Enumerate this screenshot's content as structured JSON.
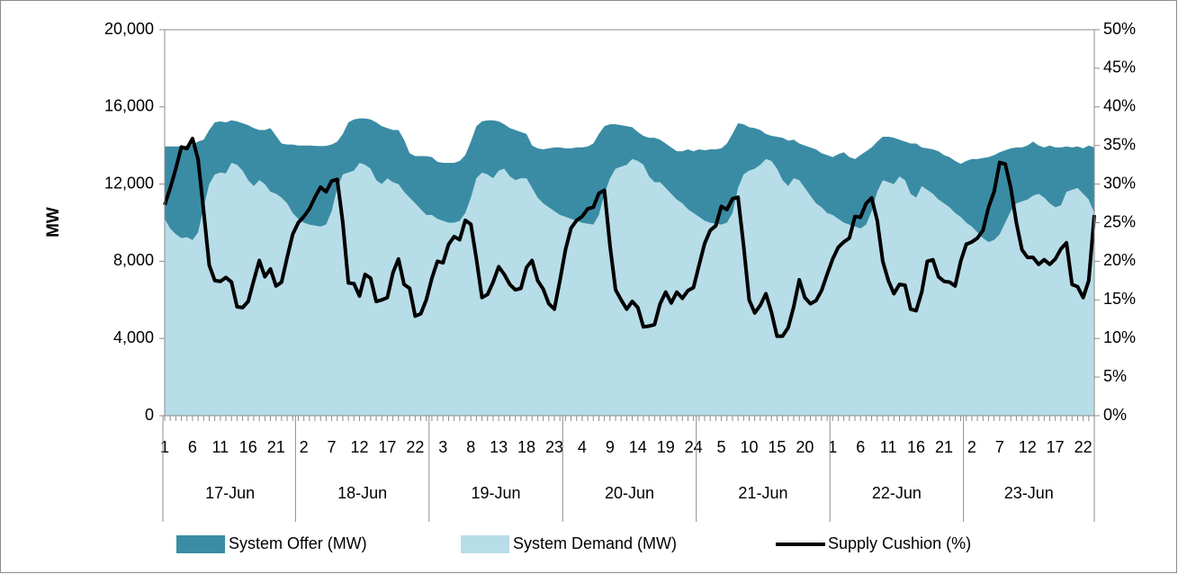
{
  "chart_data": {
    "type": "area",
    "y_label": "MW",
    "categories": [
      "1",
      null,
      null,
      null,
      null,
      "6",
      null,
      null,
      null,
      null,
      "11",
      null,
      null,
      null,
      null,
      "16",
      null,
      null,
      null,
      null,
      "21",
      null,
      null,
      null,
      null,
      "2",
      null,
      null,
      null,
      null,
      "7",
      null,
      null,
      null,
      null,
      "12",
      null,
      null,
      null,
      null,
      "17",
      null,
      null,
      null,
      null,
      "22",
      null,
      null,
      null,
      null,
      "3",
      null,
      null,
      null,
      null,
      "8",
      null,
      null,
      null,
      null,
      "13",
      null,
      null,
      null,
      null,
      "18",
      null,
      null,
      null,
      null,
      "23",
      null,
      null,
      null,
      null,
      "4",
      null,
      null,
      null,
      null,
      "9",
      null,
      null,
      null,
      null,
      "14",
      null,
      null,
      null,
      null,
      "19",
      null,
      null,
      null,
      null,
      "24",
      null,
      null,
      null,
      null,
      "5",
      null,
      null,
      null,
      null,
      "10",
      null,
      null,
      null,
      null,
      "15",
      null,
      null,
      null,
      null,
      "20",
      null,
      null,
      null,
      null,
      "1",
      null,
      null,
      null,
      null,
      "6",
      null,
      null,
      null,
      null,
      "11",
      null,
      null,
      null,
      null,
      "16",
      null,
      null,
      null,
      null,
      "21",
      null,
      null,
      null,
      null,
      "2",
      null,
      null,
      null,
      null,
      "7",
      null,
      null,
      null,
      null,
      "12",
      null,
      null,
      null,
      null,
      "17",
      null,
      null,
      null,
      null,
      "22",
      null,
      null
    ],
    "groups": [
      "17-Jun",
      "18-Jun",
      "19-Jun",
      "20-Jun",
      "21-Jun",
      "22-Jun",
      "23-Jun"
    ],
    "series": [
      {
        "name": "System Offer (MW)",
        "type": "area",
        "color": "#3a8ca4",
        "values": [
          13950,
          13950,
          13950,
          13950,
          14000,
          14050,
          14200,
          14300,
          14800,
          15200,
          15250,
          15200,
          15300,
          15250,
          15150,
          15050,
          14900,
          14800,
          14800,
          14900,
          14500,
          14100,
          14050,
          14050,
          14000,
          14000,
          14000,
          13980,
          13970,
          13980,
          14050,
          14200,
          14600,
          15200,
          15350,
          15400,
          15400,
          15350,
          15200,
          15000,
          14900,
          14800,
          14800,
          14300,
          13600,
          13450,
          13450,
          13450,
          13400,
          13150,
          13100,
          13100,
          13100,
          13200,
          13500,
          14200,
          15000,
          15250,
          15300,
          15300,
          15250,
          15100,
          14900,
          14800,
          14700,
          14600,
          14000,
          13850,
          13800,
          13850,
          13900,
          13900,
          13850,
          13850,
          13900,
          13900,
          13950,
          14100,
          14600,
          15000,
          15100,
          15100,
          15050,
          15000,
          14950,
          14700,
          14500,
          14400,
          14400,
          14300,
          14100,
          13900,
          13700,
          13700,
          13800,
          13700,
          13800,
          13750,
          13800,
          13800,
          13850,
          14100,
          14600,
          15150,
          15100,
          14950,
          14900,
          14800,
          14600,
          14500,
          14450,
          14400,
          14250,
          14300,
          14100,
          14000,
          13900,
          13800,
          13600,
          13500,
          13400,
          13550,
          13650,
          13400,
          13300,
          13500,
          13700,
          13900,
          14200,
          14450,
          14450,
          14400,
          14300,
          14200,
          14100,
          14100,
          13900,
          13850,
          13800,
          13700,
          13500,
          13400,
          13200,
          13050,
          13200,
          13300,
          13300,
          13350,
          13400,
          13500,
          13650,
          13750,
          13850,
          13900,
          13900,
          14000,
          14200,
          14000,
          13900,
          14000,
          13900,
          13900,
          13950,
          13900,
          13950,
          13850,
          14000,
          13900
        ]
      },
      {
        "name": "System Demand (MW)",
        "type": "area",
        "color": "#b7dde8",
        "values": [
          10200,
          9700,
          9400,
          9200,
          9250,
          9100,
          9500,
          10800,
          12000,
          12500,
          12600,
          12550,
          13100,
          13000,
          12700,
          12200,
          11900,
          12200,
          12000,
          11600,
          11500,
          11300,
          11000,
          10500,
          10200,
          10000,
          9900,
          9850,
          9800,
          9900,
          10600,
          11800,
          12500,
          12600,
          12700,
          13100,
          13000,
          12800,
          12200,
          12000,
          12300,
          12100,
          12000,
          11600,
          11300,
          11000,
          10700,
          10400,
          10400,
          10200,
          10100,
          10000,
          10000,
          10100,
          10500,
          11300,
          12300,
          12600,
          12500,
          12300,
          12700,
          12800,
          12400,
          12200,
          12300,
          12300,
          11800,
          11300,
          11000,
          10800,
          10600,
          10400,
          10300,
          10200,
          10100,
          10000,
          9950,
          9900,
          10400,
          11500,
          12300,
          12800,
          12900,
          13000,
          13300,
          13200,
          13000,
          12400,
          12100,
          12100,
          11800,
          11500,
          11200,
          11000,
          10700,
          10500,
          10300,
          10100,
          10000,
          9950,
          9900,
          10000,
          10500,
          11800,
          12500,
          12700,
          12800,
          13000,
          13300,
          13200,
          12800,
          12200,
          11900,
          12300,
          12200,
          11800,
          11400,
          11000,
          10800,
          10500,
          10400,
          10200,
          10000,
          9900,
          9800,
          9700,
          9900,
          10600,
          11600,
          12200,
          12100,
          12000,
          12400,
          12200,
          11500,
          11300,
          11900,
          11700,
          11500,
          11200,
          11000,
          10800,
          10500,
          10300,
          10000,
          9800,
          9500,
          9200,
          9000,
          9100,
          9400,
          10000,
          10600,
          11000,
          11100,
          11200,
          11400,
          11500,
          11300,
          11000,
          10800,
          10900,
          11600,
          11700,
          11800,
          11500,
          11200,
          10500
        ]
      },
      {
        "name": "Supply Cushion (%)",
        "type": "line",
        "axis": "y2",
        "color": "#000000",
        "values": [
          27.3,
          29.5,
          32,
          34.8,
          34.6,
          35.9,
          33.2,
          26.5,
          19.5,
          17.5,
          17.4,
          17.9,
          17.3,
          14.1,
          14,
          14.8,
          17.5,
          20.1,
          18,
          19,
          16.8,
          17.3,
          20.5,
          23.5,
          25,
          25.8,
          26.8,
          28.3,
          29.6,
          29,
          30.4,
          30.6,
          25,
          17.2,
          17.1,
          15.5,
          18.3,
          17.8,
          14.8,
          15,
          15.3,
          18.5,
          20.3,
          17,
          16.5,
          12.9,
          13.2,
          15,
          17.8,
          20,
          19.8,
          22.2,
          23.2,
          22.8,
          25.3,
          24.8,
          20.3,
          15.3,
          15.7,
          17.3,
          19.3,
          18.3,
          17,
          16.3,
          16.5,
          19.2,
          20.1,
          17.5,
          16.4,
          14.5,
          13.8,
          17.5,
          21.5,
          24.3,
          25.3,
          25.8,
          26.8,
          27,
          28.8,
          29.2,
          22,
          16.3,
          15,
          13.8,
          14.8,
          14,
          11.5,
          11.6,
          11.8,
          14.5,
          16,
          14.6,
          16,
          15.2,
          16.2,
          16.6,
          19.5,
          22.3,
          24,
          24.6,
          27.1,
          26.7,
          28.1,
          28.3,
          22,
          15,
          13.3,
          14.3,
          15.8,
          13.4,
          10.3,
          10.3,
          11.4,
          14.1,
          17.6,
          15.3,
          14.5,
          14.9,
          16.2,
          18.3,
          20.3,
          21.8,
          22.5,
          23,
          25.8,
          25.7,
          27.5,
          28.2,
          25.3,
          20,
          17.5,
          15.8,
          17,
          16.9,
          13.8,
          13.6,
          16,
          20,
          20.2,
          18,
          17.4,
          17.3,
          16.8,
          20,
          22.2,
          22.5,
          23,
          24,
          27,
          29,
          32.8,
          32.6,
          29.5,
          25,
          21.5,
          20.5,
          20.5,
          19.6,
          20.2,
          19.6,
          20.3,
          21.6,
          22.4,
          17,
          16.7,
          15.3,
          17.5,
          26
        ]
      }
    ],
    "ylim": [
      0,
      20000
    ],
    "yticks": [
      {
        "value": 0,
        "label": "0"
      },
      {
        "value": 4000,
        "label": "4,000"
      },
      {
        "value": 8000,
        "label": "8,000"
      },
      {
        "value": 12000,
        "label": "12,000"
      },
      {
        "value": 16000,
        "label": "16,000"
      },
      {
        "value": 20000,
        "label": "20,000"
      }
    ],
    "y2lim": [
      0,
      50
    ],
    "y2ticks": [
      {
        "value": 0,
        "label": "0%"
      },
      {
        "value": 5,
        "label": "5%"
      },
      {
        "value": 10,
        "label": "10%"
      },
      {
        "value": 15,
        "label": "15%"
      },
      {
        "value": 20,
        "label": "20%"
      },
      {
        "value": 25,
        "label": "25%"
      },
      {
        "value": 30,
        "label": "30%"
      },
      {
        "value": 35,
        "label": "35%"
      },
      {
        "value": 40,
        "label": "40%"
      },
      {
        "value": 45,
        "label": "45%"
      },
      {
        "value": 50,
        "label": "50%"
      }
    ],
    "grid": false,
    "legend": "bottom"
  }
}
